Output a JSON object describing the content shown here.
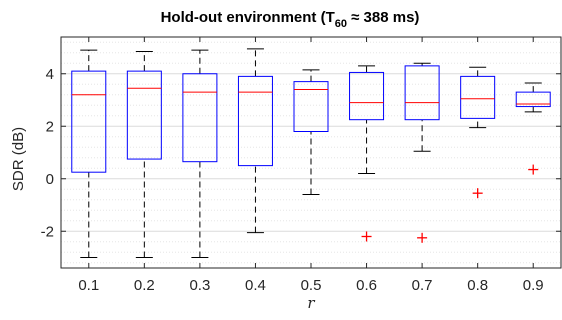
{
  "chart_data": {
    "type": "boxplot",
    "title_main": "Hold-out environment (T",
    "title_sub": "60",
    "title_rest": " ≈ 388 ms)",
    "xlabel": "r",
    "ylabel": "SDR (dB)",
    "categories": [
      "0.1",
      "0.2",
      "0.3",
      "0.4",
      "0.5",
      "0.6",
      "0.7",
      "0.8",
      "0.9"
    ],
    "ylim": [
      -3.4,
      5.4
    ],
    "yticks": [
      -2,
      0,
      2,
      4
    ],
    "ytick_labels": [
      "-2",
      "0",
      "2",
      "4"
    ],
    "minor_ytick_step": 0.4,
    "grid": true,
    "boxes": [
      {
        "whisker_low": -3.0,
        "q1": 0.25,
        "median": 3.2,
        "q3": 4.1,
        "whisker_high": 4.9,
        "outliers": []
      },
      {
        "whisker_low": -3.0,
        "q1": 0.75,
        "median": 3.45,
        "q3": 4.1,
        "whisker_high": 4.85,
        "outliers": []
      },
      {
        "whisker_low": -3.0,
        "q1": 0.65,
        "median": 3.3,
        "q3": 4.0,
        "whisker_high": 4.9,
        "outliers": []
      },
      {
        "whisker_low": -2.05,
        "q1": 0.5,
        "median": 3.3,
        "q3": 3.9,
        "whisker_high": 4.95,
        "outliers": []
      },
      {
        "whisker_low": -0.6,
        "q1": 1.8,
        "median": 3.4,
        "q3": 3.7,
        "whisker_high": 4.15,
        "outliers": []
      },
      {
        "whisker_low": 0.2,
        "q1": 2.25,
        "median": 2.9,
        "q3": 4.05,
        "whisker_high": 4.3,
        "outliers": [
          -2.2
        ]
      },
      {
        "whisker_low": 1.05,
        "q1": 2.25,
        "median": 2.9,
        "q3": 4.3,
        "whisker_high": 4.4,
        "outliers": [
          -2.25
        ]
      },
      {
        "whisker_low": 1.95,
        "q1": 2.3,
        "median": 3.05,
        "q3": 3.9,
        "whisker_high": 4.25,
        "outliers": [
          -0.55
        ]
      },
      {
        "whisker_low": 2.55,
        "q1": 2.75,
        "median": 2.85,
        "q3": 3.3,
        "whisker_high": 3.65,
        "outliers": [
          0.35
        ]
      }
    ],
    "colors": {
      "box": "#0000ff",
      "median": "#ff0000",
      "outlier": "#ff0000",
      "whisker": "#000000",
      "grid_major": "#dcdcdc",
      "grid_minor": "#e6e6e6",
      "axes": "#262626"
    }
  }
}
